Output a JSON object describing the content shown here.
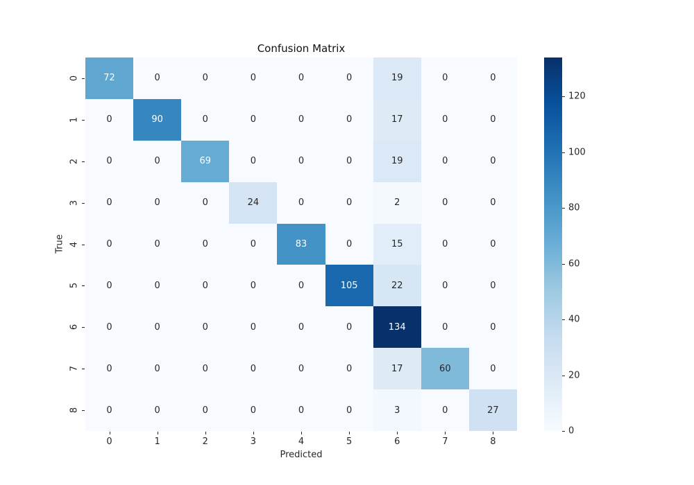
{
  "figure": {
    "background": "#ffffff"
  },
  "chart_data": {
    "type": "heatmap",
    "title": "Confusion Matrix",
    "xlabel": "Predicted",
    "ylabel": "True",
    "x_tick_labels": [
      "0",
      "1",
      "2",
      "3",
      "4",
      "5",
      "6",
      "7",
      "8"
    ],
    "y_tick_labels": [
      "0",
      "1",
      "2",
      "3",
      "4",
      "5",
      "6",
      "7",
      "8"
    ],
    "matrix": [
      [
        72,
        0,
        0,
        0,
        0,
        0,
        19,
        0,
        0
      ],
      [
        0,
        90,
        0,
        0,
        0,
        0,
        17,
        0,
        0
      ],
      [
        0,
        0,
        69,
        0,
        0,
        0,
        19,
        0,
        0
      ],
      [
        0,
        0,
        0,
        24,
        0,
        0,
        2,
        0,
        0
      ],
      [
        0,
        0,
        0,
        0,
        83,
        0,
        15,
        0,
        0
      ],
      [
        0,
        0,
        0,
        0,
        0,
        105,
        22,
        0,
        0
      ],
      [
        0,
        0,
        0,
        0,
        0,
        0,
        134,
        0,
        0
      ],
      [
        0,
        0,
        0,
        0,
        0,
        0,
        17,
        60,
        0
      ],
      [
        0,
        0,
        0,
        0,
        0,
        0,
        3,
        0,
        27
      ]
    ],
    "vmin": 0,
    "vmax": 134,
    "colormap": "Blues",
    "colormap_stops": [
      {
        "pos": 0.0,
        "color": "#f7fbff"
      },
      {
        "pos": 0.125,
        "color": "#deebf7"
      },
      {
        "pos": 0.25,
        "color": "#c6dbef"
      },
      {
        "pos": 0.375,
        "color": "#9ecae1"
      },
      {
        "pos": 0.5,
        "color": "#6baed6"
      },
      {
        "pos": 0.625,
        "color": "#4292c6"
      },
      {
        "pos": 0.75,
        "color": "#2171b5"
      },
      {
        "pos": 0.875,
        "color": "#08519c"
      },
      {
        "pos": 1.0,
        "color": "#08306b"
      }
    ],
    "colorbar_ticks": [
      0,
      20,
      40,
      60,
      80,
      100,
      120
    ],
    "annotation_colors": {
      "light": "#ffffff",
      "dark": "#262626"
    },
    "legend_position": "right-colorbar",
    "grid": false
  }
}
